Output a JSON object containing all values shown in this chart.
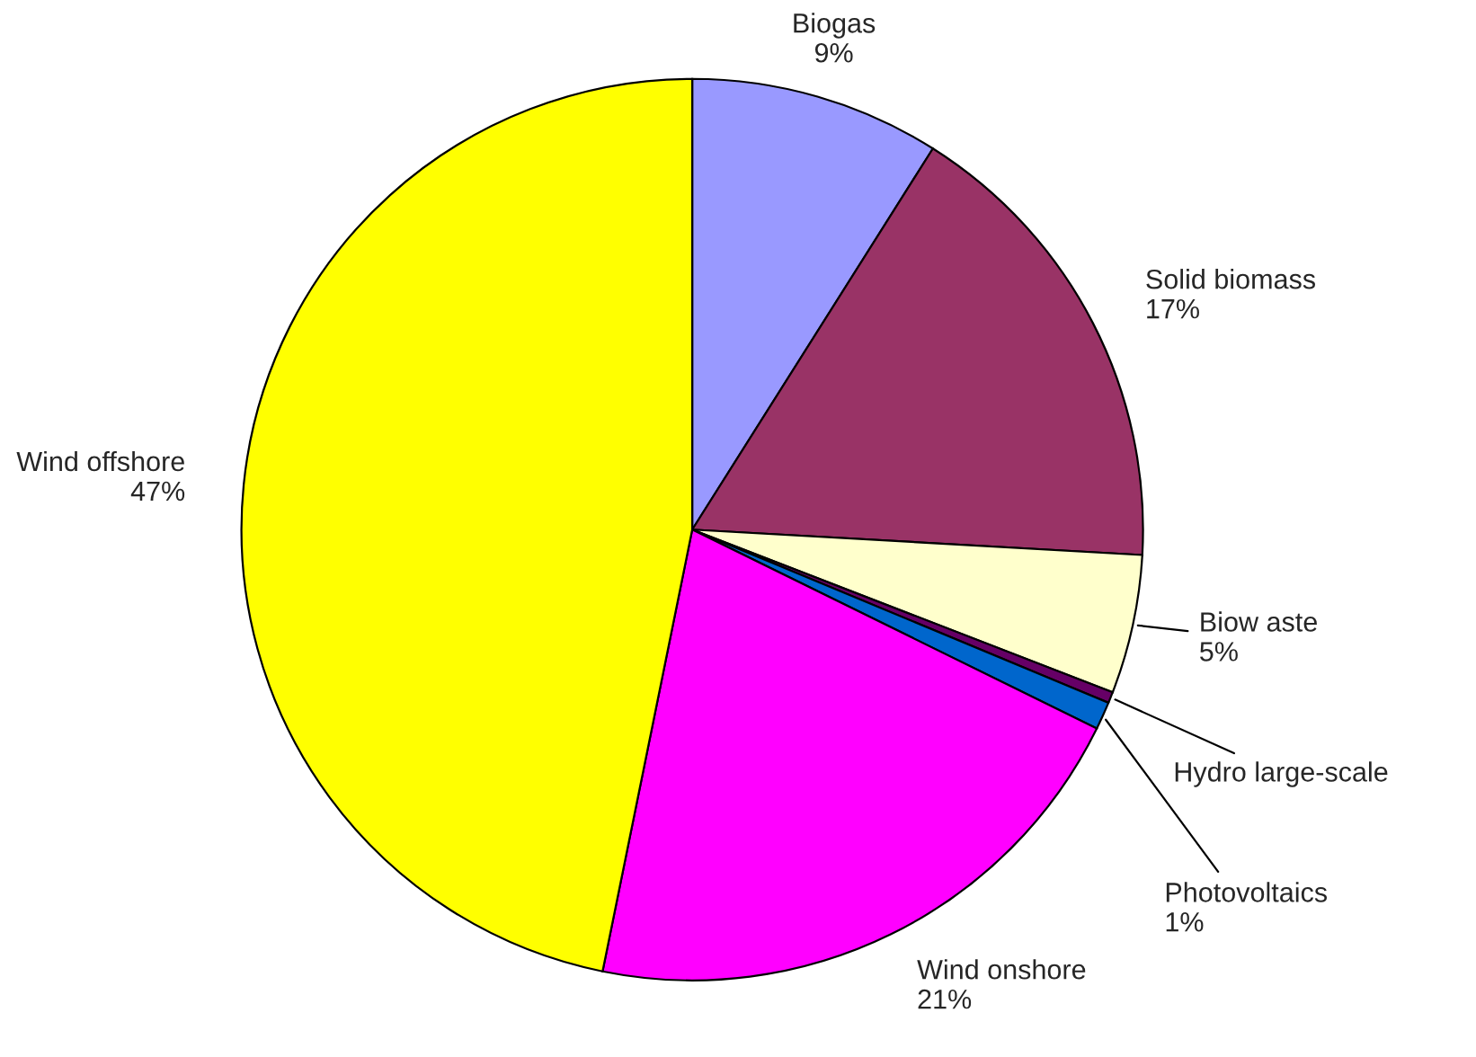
{
  "chart_data": {
    "type": "pie",
    "categories": [
      "Biogas",
      "Solid biomass",
      "Biow aste",
      "Hydro large-scale",
      "Photovoltaics",
      "Wind onshore",
      "Wind offshore"
    ],
    "values": [
      9,
      17,
      5,
      0.4,
      1,
      21,
      47
    ],
    "value_labels": [
      "9%",
      "17%",
      "5%",
      null,
      "1%",
      "21%",
      "47%"
    ],
    "colors": [
      "#9999ff",
      "#993366",
      "#ffffcc",
      "#660066",
      "#0066cc",
      "#ff00ff",
      "#ffff00"
    ],
    "legend": false
  }
}
